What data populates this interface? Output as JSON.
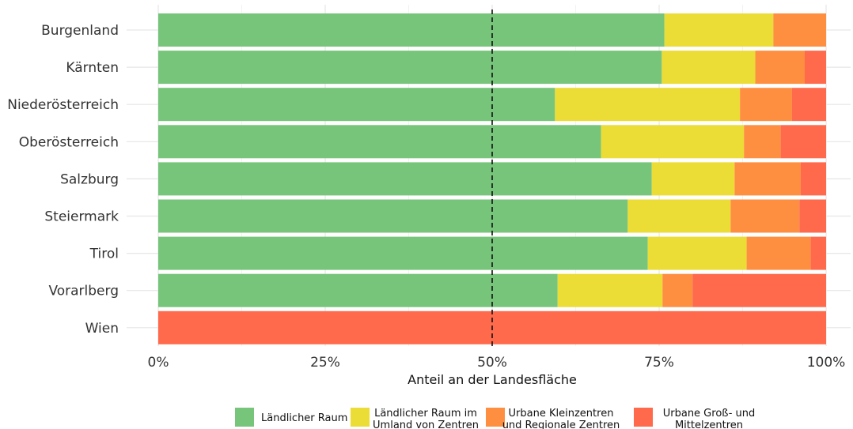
{
  "chart_data": {
    "type": "bar",
    "orientation": "horizontal",
    "stacked": true,
    "categories": [
      "Burgenland",
      "Kärnten",
      "Niederösterreich",
      "Oberösterreich",
      "Salzburg",
      "Steiermark",
      "Tirol",
      "Vorarlberg",
      "Wien"
    ],
    "series": [
      {
        "name": "Ländlicher Raum",
        "legend_lines": [
          "Ländlicher Raum"
        ],
        "color": "#77C57A",
        "values": [
          75.8,
          75.4,
          59.4,
          66.3,
          73.9,
          70.3,
          73.3,
          59.8,
          0
        ]
      },
      {
        "name": "Ländlicher Raum im Umland von Zentren",
        "legend_lines": [
          "Ländlicher Raum im",
          "Umland von Zentren"
        ],
        "color": "#EBDC36",
        "values": [
          16.3,
          14.0,
          27.7,
          21.4,
          12.4,
          15.4,
          14.8,
          15.7,
          0
        ]
      },
      {
        "name": "Urbane Kleinzentren und Regionale Zentren",
        "legend_lines": [
          "Urbane Kleinzentren",
          "und Regionale Zentren"
        ],
        "color": "#FF8F40",
        "values": [
          7.9,
          7.4,
          7.8,
          5.5,
          9.9,
          10.3,
          9.6,
          4.5,
          0
        ]
      },
      {
        "name": "Urbane Groß- und Mittelzentren",
        "legend_lines": [
          "Urbane Groß- und",
          "Mittelzentren"
        ],
        "color": "#FF6A4C",
        "values": [
          0.0,
          3.2,
          5.1,
          6.8,
          3.8,
          4.0,
          2.3,
          20.0,
          100
        ]
      }
    ],
    "xlabel": "Anteil an der Landesfläche",
    "ylabel": "",
    "xlim": [
      0,
      100
    ],
    "xticks": [
      0,
      25,
      50,
      75,
      100
    ],
    "xtick_labels": [
      "0%",
      "25%",
      "50%",
      "75%",
      "100%"
    ],
    "reference_line": {
      "value": 50,
      "style": "dashed"
    },
    "grid": true,
    "legend_position": "bottom"
  }
}
